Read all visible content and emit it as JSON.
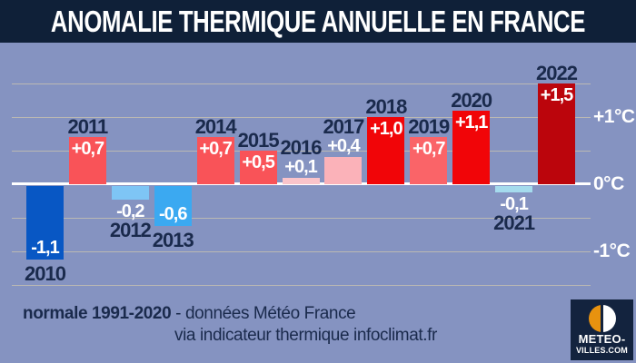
{
  "title": "ANOMALIE THERMIQUE ANNUELLE EN FRANCE",
  "colors": {
    "background": "#8593C1",
    "title_bar": "#0F2038",
    "year_label": "#1A2A4C",
    "value_label": "#FFFFFF",
    "gridline": "#CDC5AE",
    "zero_line": "#FFFFFF",
    "axis_label": "#FFFFFF",
    "logo_background": "#13233E",
    "logo_orange": "#E8920F"
  },
  "chart_data": {
    "type": "bar",
    "title": "ANOMALIE THERMIQUE ANNUELLE EN FRANCE",
    "unit": "°C",
    "ylim": [
      -1.5,
      1.5
    ],
    "gridline_step": 0.5,
    "grid": true,
    "legend": false,
    "categories": [
      "2010",
      "2011",
      "2012",
      "2013",
      "2014",
      "2015",
      "2016",
      "2017",
      "2018",
      "2019",
      "2020",
      "2021",
      "2022"
    ],
    "values": [
      -1.1,
      0.7,
      -0.2,
      -0.6,
      0.7,
      0.5,
      0.1,
      0.4,
      1.0,
      0.7,
      1.1,
      -0.1,
      1.5
    ],
    "axis_labels": [
      {
        "label": "+1°C",
        "value": 1
      },
      {
        "label": "0°C",
        "value": 0
      },
      {
        "label": "-1°C",
        "value": -1
      }
    ],
    "bars": [
      {
        "year": "2010",
        "value": -1.1,
        "label": "-1,1",
        "color": "#0857C4",
        "year_pos": "below",
        "value_pos": "inside-bottom"
      },
      {
        "year": "2011",
        "value": 0.7,
        "label": "+0,7",
        "color": "#F95358",
        "year_pos": "above",
        "value_pos": "inside-top"
      },
      {
        "year": "2012",
        "value": -0.2,
        "label": "-0,2",
        "color": "#7EC5F5",
        "year_pos": "below",
        "value_pos": "below"
      },
      {
        "year": "2013",
        "value": -0.6,
        "label": "-0,6",
        "color": "#3BA9F1",
        "year_pos": "below",
        "value_pos": "inside-bottom"
      },
      {
        "year": "2014",
        "value": 0.7,
        "label": "+0,7",
        "color": "#F95358",
        "year_pos": "above",
        "value_pos": "inside-top"
      },
      {
        "year": "2015",
        "value": 0.5,
        "label": "+0,5",
        "color": "#F95358",
        "year_pos": "above",
        "value_pos": "inside-top"
      },
      {
        "year": "2016",
        "value": 0.1,
        "label": "+0,1",
        "color": "#FBC4CA",
        "year_pos": "above",
        "value_pos": "above"
      },
      {
        "year": "2017",
        "value": 0.4,
        "label": "+0,4",
        "color": "#FBB2B9",
        "year_pos": "above",
        "value_pos": "above"
      },
      {
        "year": "2018",
        "value": 1.0,
        "label": "+1,0",
        "color": "#F10508",
        "year_pos": "above",
        "value_pos": "inside-top"
      },
      {
        "year": "2019",
        "value": 0.7,
        "label": "+0,7",
        "color": "#FA6468",
        "year_pos": "above",
        "value_pos": "inside-top"
      },
      {
        "year": "2020",
        "value": 1.1,
        "label": "+1,1",
        "color": "#F10508",
        "year_pos": "above",
        "value_pos": "inside-top"
      },
      {
        "year": "2021",
        "value": -0.1,
        "label": "-0,1",
        "color": "#A5DBED",
        "year_pos": "below",
        "value_pos": "below"
      },
      {
        "year": "2022",
        "value": 1.5,
        "label": "+1,5",
        "color": "#BB050C",
        "year_pos": "above",
        "value_pos": "inside-top"
      }
    ]
  },
  "footer": {
    "normale": "normale 1991-2020",
    "source1": " - données Météo France",
    "source2": "via indicateur thermique infoclimat.fr"
  },
  "logo": {
    "line1": "METEO-",
    "line2": "VILLES.COM"
  }
}
